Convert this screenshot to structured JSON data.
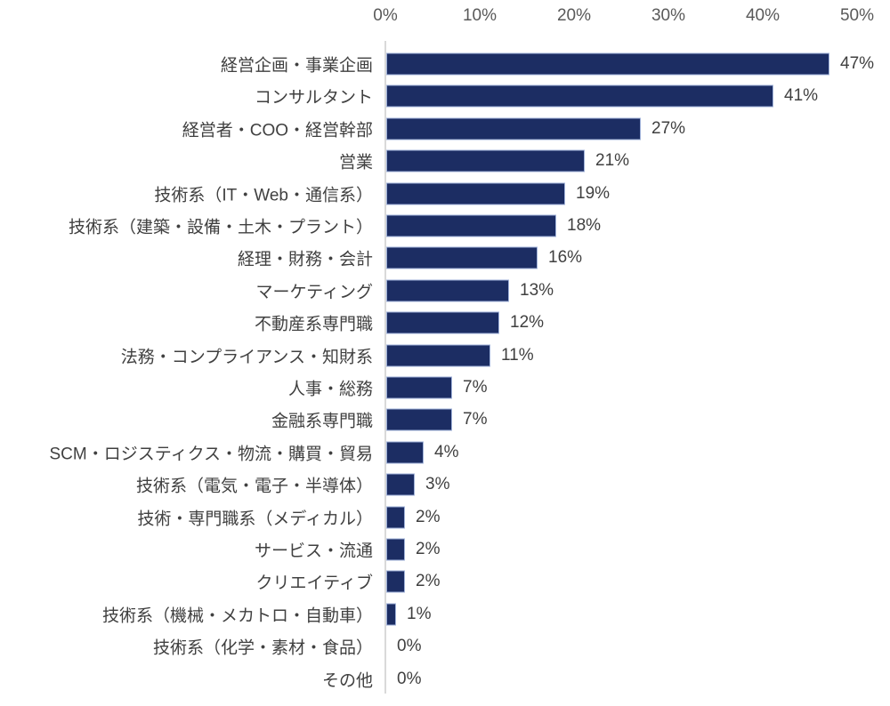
{
  "chart_data": {
    "type": "bar",
    "orientation": "horizontal",
    "title": "",
    "xlabel": "",
    "ylabel": "",
    "unit": "%",
    "xlim": [
      0,
      50
    ],
    "x_ticks": [
      "0%",
      "10%",
      "20%",
      "30%",
      "40%",
      "50%"
    ],
    "grid": false,
    "legend": false,
    "categories": [
      "経営企画・事業企画",
      "コンサルタント",
      "経営者・COO・経営幹部",
      "営業",
      "技術系（IT・Web・通信系）",
      "技術系（建築・設備・土木・プラント）",
      "経理・財務・会計",
      "マーケティング",
      "不動産系専門職",
      "法務・コンプライアンス・知財系",
      "人事・総務",
      "金融系専門職",
      "SCM・ロジスティクス・物流・購買・貿易",
      "技術系（電気・電子・半導体）",
      "技術・専門職系（メディカル）",
      "サービス・流通",
      "クリエイティブ",
      "技術系（機械・メカトロ・自動車）",
      "技術系（化学・素材・食品）",
      "その他"
    ],
    "values": [
      47,
      41,
      27,
      21,
      19,
      18,
      16,
      13,
      12,
      11,
      7,
      7,
      4,
      3,
      2,
      2,
      2,
      1,
      0,
      0
    ],
    "value_labels": [
      "47%",
      "41%",
      "27%",
      "21%",
      "19%",
      "18%",
      "16%",
      "13%",
      "12%",
      "11%",
      "7%",
      "7%",
      "4%",
      "3%",
      "2%",
      "2%",
      "2%",
      "1%",
      "0%",
      "0%"
    ],
    "colors": {
      "bar_fill": "#1c2d63",
      "bar_border": "#9fb1d8",
      "axis_line": "#d9d9d9",
      "tick_text": "#595959",
      "label_text": "#404040"
    }
  }
}
